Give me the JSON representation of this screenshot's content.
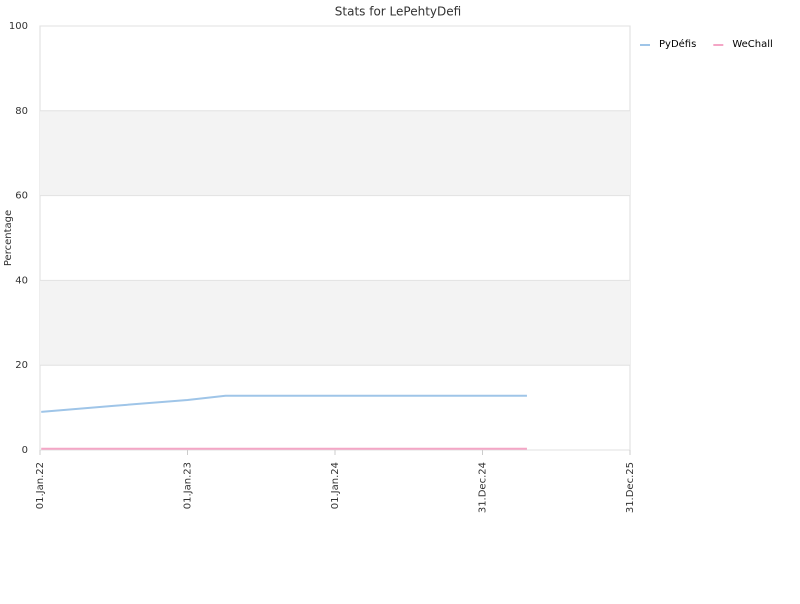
{
  "chart_data": {
    "type": "line",
    "title": "Stats for LePehtyDefi",
    "y_label": "Percentage",
    "x": [
      "2022-01-04",
      "2022-07-01",
      "2023-01-01",
      "2023-04-05",
      "2025-04-20"
    ],
    "series": [
      {
        "name": "PyDéfis",
        "color": "#9fc5e8",
        "values": [
          9,
          10.4,
          11.8,
          12.8,
          12.8
        ]
      },
      {
        "name": "WeChall",
        "color": "#f4a6c6",
        "values": [
          0.3,
          0.3,
          0.3,
          0.3,
          0.3
        ]
      }
    ],
    "xlim": [
      "2022-01-01",
      "2025-12-31"
    ],
    "xticks": [
      {
        "value": "2022-01-01",
        "label": "01.Jan.22"
      },
      {
        "value": "2023-01-01",
        "label": "01.Jan.23"
      },
      {
        "value": "2024-01-01",
        "label": "01.Jan.24"
      },
      {
        "value": "2024-12-31",
        "label": "31.Dec.24"
      },
      {
        "value": "2025-12-31",
        "label": "31.Dec.25"
      }
    ],
    "ylim": [
      0,
      100
    ],
    "yticks": [
      0,
      20,
      40,
      60,
      80,
      100
    ],
    "grid": true,
    "legend": "right"
  }
}
